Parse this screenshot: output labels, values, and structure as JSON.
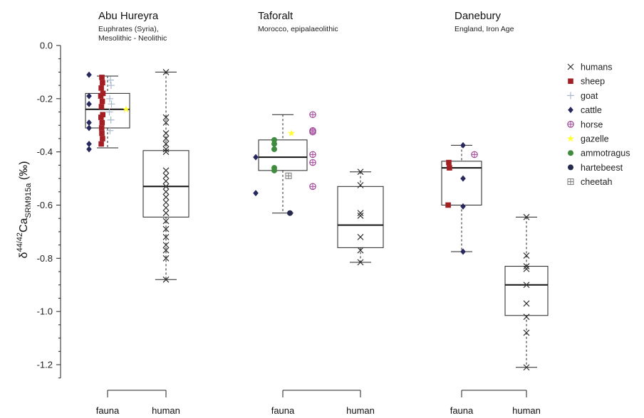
{
  "colors": {
    "humans": "#333333",
    "sheep": "#a31f24",
    "goat": "#a9b9cc",
    "cattle": "#27285e",
    "horse": "#a0479a",
    "gazelle": "#ffff33",
    "ammotragus": "#3f8c3f",
    "hartebeest": "#252a4c",
    "cheetah": "#777777",
    "box": "#222222"
  },
  "chart_data": {
    "type": "box",
    "ylabel": {
      "main": "δ",
      "sup": "44/42",
      "ca": "Ca",
      "sub": "SRM915a",
      "unit": " (‰)"
    },
    "ylim": [
      -1.25,
      0.0
    ],
    "yticks": [
      0.0,
      -0.2,
      -0.4,
      -0.6,
      -0.8,
      -1.0,
      -1.2
    ],
    "ytick_labels": [
      "0.0",
      "-0.2",
      "-0.4",
      "-0.6",
      "-0.8",
      "-1.0",
      "-1.2"
    ],
    "category_labels": [
      "fauna",
      "human"
    ],
    "legend": [
      {
        "key": "humans",
        "label": "humans",
        "marker": "x"
      },
      {
        "key": "sheep",
        "label": "sheep",
        "marker": "square"
      },
      {
        "key": "goat",
        "label": "goat",
        "marker": "plus"
      },
      {
        "key": "cattle",
        "label": "cattle",
        "marker": "diamond"
      },
      {
        "key": "horse",
        "label": "horse",
        "marker": "circle-plus"
      },
      {
        "key": "gazelle",
        "label": "gazelle",
        "marker": "star"
      },
      {
        "key": "ammotragus",
        "label": "ammotragus",
        "marker": "circle"
      },
      {
        "key": "hartebeest",
        "label": "hartebeest",
        "marker": "circle"
      },
      {
        "key": "cheetah",
        "label": "cheetah",
        "marker": "square-plus"
      }
    ],
    "sites": [
      {
        "title": "Abu Hureyra",
        "subtitle": [
          "Euphrates (Syria),",
          "Mesolithic - Neolithic"
        ],
        "boxes": [
          {
            "category": "fauna",
            "min": -0.385,
            "q1": -0.31,
            "median": -0.24,
            "q3": -0.18,
            "max": -0.115
          },
          {
            "category": "human",
            "min": -0.88,
            "q1": -0.645,
            "median": -0.53,
            "q3": -0.395,
            "max": -0.1
          }
        ],
        "points": {
          "cattle": [
            -0.11,
            -0.19,
            -0.22,
            -0.29,
            -0.31,
            -0.37,
            -0.39
          ],
          "sheep": [
            -0.12,
            -0.14,
            -0.16,
            -0.18,
            -0.19,
            -0.21,
            -0.23,
            -0.26,
            -0.27,
            -0.29,
            -0.31,
            -0.33,
            -0.35,
            -0.37
          ],
          "goat": [
            -0.13,
            -0.15,
            -0.2,
            -0.22,
            -0.25,
            -0.28,
            -0.32
          ],
          "gazelle": [
            -0.24
          ],
          "humans": [
            -0.1,
            -0.27,
            -0.29,
            -0.33,
            -0.35,
            -0.37,
            -0.39,
            -0.4,
            -0.47,
            -0.49,
            -0.51,
            -0.53,
            -0.55,
            -0.57,
            -0.59,
            -0.61,
            -0.63,
            -0.66,
            -0.69,
            -0.72,
            -0.75,
            -0.77,
            -0.8,
            -0.88
          ]
        }
      },
      {
        "title": "Taforalt",
        "subtitle": [
          "Morocco, epipalaeolithic"
        ],
        "boxes": [
          {
            "category": "fauna",
            "min": -0.63,
            "q1": -0.47,
            "median": -0.42,
            "q3": -0.355,
            "max": -0.26
          },
          {
            "category": "human",
            "min": -0.815,
            "q1": -0.76,
            "median": -0.675,
            "q3": -0.53,
            "max": -0.475
          }
        ],
        "points": {
          "cattle": [
            -0.42,
            -0.555
          ],
          "ammotragus": [
            -0.355,
            -0.37,
            -0.39,
            -0.46,
            -0.47
          ],
          "gazelle": [
            -0.33
          ],
          "horse": [
            -0.26,
            -0.32,
            -0.325,
            -0.41,
            -0.44,
            -0.53
          ],
          "cheetah": [
            -0.49
          ],
          "hartebeest": [
            -0.63
          ],
          "humans": [
            -0.475,
            -0.525,
            -0.63,
            -0.64,
            -0.72,
            -0.77,
            -0.815
          ]
        }
      },
      {
        "title": "Danebury",
        "subtitle": [
          "England, Iron Age"
        ],
        "boxes": [
          {
            "category": "fauna",
            "min": -0.775,
            "q1": -0.6,
            "median": -0.46,
            "q3": -0.435,
            "max": -0.375
          },
          {
            "category": "human",
            "min": -1.21,
            "q1": -1.015,
            "median": -0.9,
            "q3": -0.83,
            "max": -0.645
          }
        ],
        "points": {
          "sheep": [
            -0.44,
            -0.46,
            -0.6
          ],
          "cattle": [
            -0.375,
            -0.5,
            -0.605,
            -0.775
          ],
          "horse": [
            -0.41
          ],
          "humans": [
            -0.645,
            -0.79,
            -0.83,
            -0.84,
            -0.9,
            -0.97,
            -1.02,
            -1.08,
            -1.21
          ]
        }
      }
    ]
  }
}
